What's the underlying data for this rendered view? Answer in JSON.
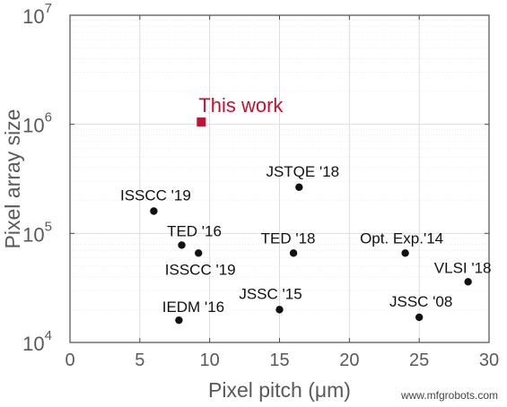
{
  "chart_data": {
    "type": "scatter",
    "xlabel": "Pixel pitch (μm)",
    "ylabel": "Pixel array size",
    "xlim": [
      0,
      30
    ],
    "ylim": [
      10000,
      10000000
    ],
    "yscale": "log",
    "grid": true,
    "x_ticks": [
      "0",
      "5",
      "10",
      "15",
      "20",
      "25",
      "30"
    ],
    "y_ticks": [
      {
        "base": "10",
        "exp": "4"
      },
      {
        "base": "10",
        "exp": "5"
      },
      {
        "base": "10",
        "exp": "6"
      },
      {
        "base": "10",
        "exp": "7"
      }
    ],
    "highlight": {
      "label": "This work",
      "x": 9.4,
      "y": 1050000,
      "color": "#c8102e"
    },
    "points": [
      {
        "label": "ISSCC '19",
        "x": 6.0,
        "y": 160000
      },
      {
        "label": "TED '16",
        "x": 8.0,
        "y": 78000
      },
      {
        "label": "ISSCC '19",
        "x": 9.2,
        "y": 66000
      },
      {
        "label": "IEDM '16",
        "x": 7.8,
        "y": 16000
      },
      {
        "label": "JSTQE '18",
        "x": 16.4,
        "y": 265000
      },
      {
        "label": "TED '18",
        "x": 16.0,
        "y": 66000
      },
      {
        "label": "JSSC '15",
        "x": 15.0,
        "y": 20000
      },
      {
        "label": "Opt. Exp.'14",
        "x": 24.0,
        "y": 66000
      },
      {
        "label": "VLSI '18",
        "x": 28.5,
        "y": 36000
      },
      {
        "label": "JSSC '08",
        "x": 25.0,
        "y": 17000
      }
    ],
    "point_color": "#111111"
  },
  "watermark": "www.mfgrobots.com"
}
